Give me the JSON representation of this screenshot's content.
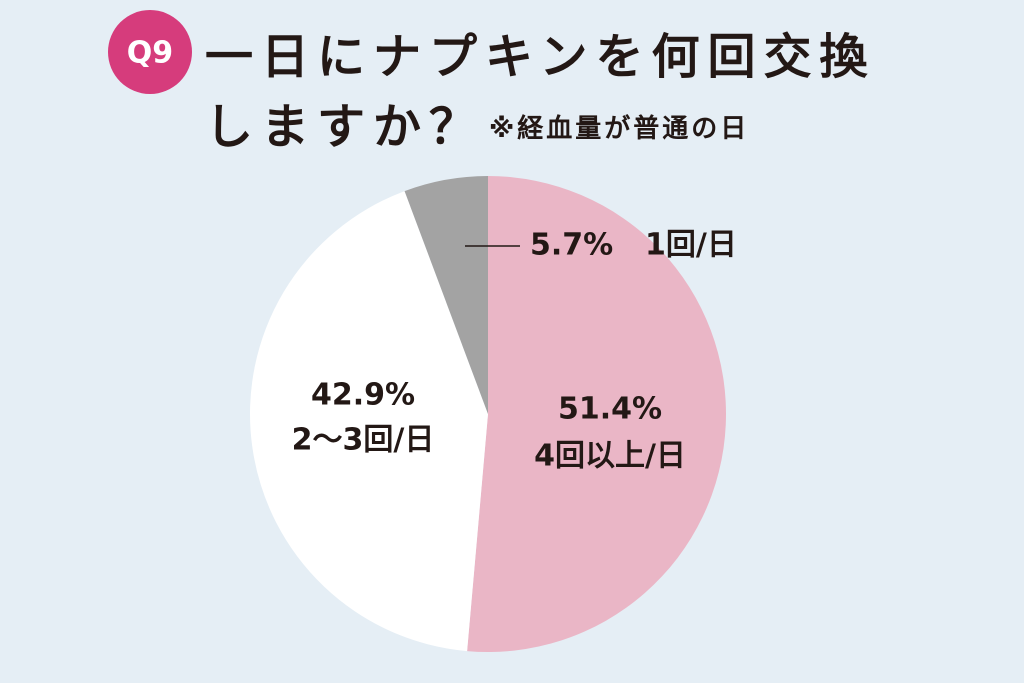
{
  "chart_data": {
    "type": "pie",
    "badge": "Q9",
    "title": "一日にナプキンを何回交換しますか？",
    "subtitle": "※経血量が普通の日",
    "categories": [
      "4回以上/日",
      "2～3回/日",
      "1回/日"
    ],
    "values": [
      51.4,
      42.9,
      5.7
    ],
    "value_labels": [
      "51.4%",
      "42.9%",
      "5.7%"
    ],
    "colors": [
      "#eab6c6",
      "#ffffff",
      "#a3a3a3"
    ],
    "badge_color": "#d63c7c"
  }
}
